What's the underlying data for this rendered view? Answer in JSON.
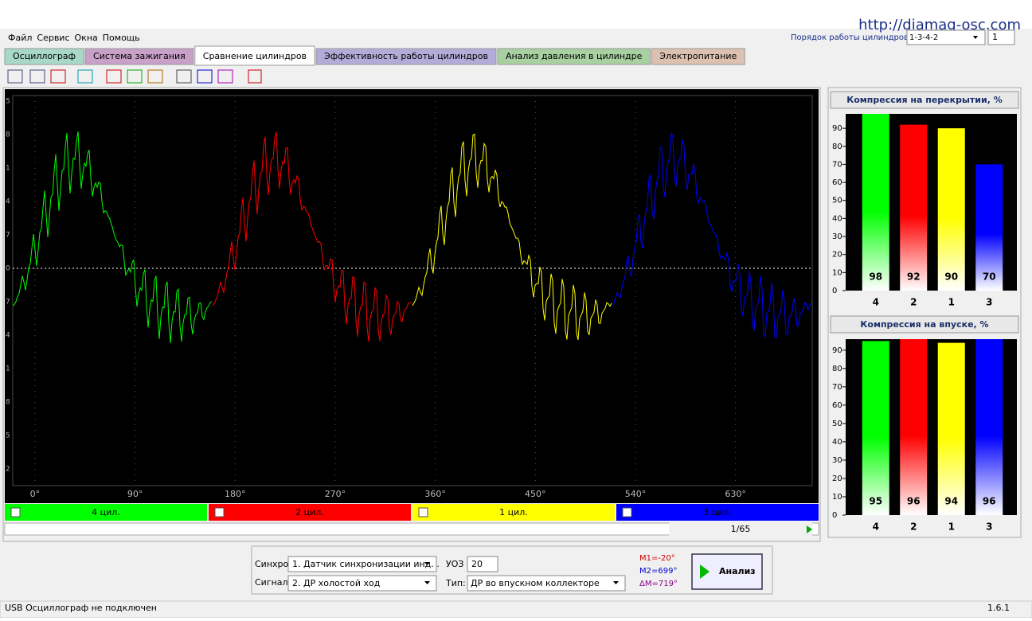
{
  "url": "http://diamag-osc.com",
  "menu": [
    "Файл",
    "Сервис",
    "Окна",
    "Помощь"
  ],
  "order_label": "Порядок работы цилиндров",
  "order_value": "1-3-4-2",
  "order_spin": "1",
  "tabs": [
    "Осциллограф",
    "Система зажигания",
    "Сравнение цилиндров",
    "Эффективность работы цилиндров",
    "Анализ давления в цилиндре",
    "Электропитание"
  ],
  "osc_y_labels": [
    "5",
    "8",
    "1",
    "4",
    "7",
    "0",
    "7",
    "4",
    "1",
    "8",
    "5",
    "2"
  ],
  "channels": [
    {
      "name": "4 цил.",
      "color": "#00ff00"
    },
    {
      "name": "2 цил.",
      "color": "#ff0000"
    },
    {
      "name": "1 цил.",
      "color": "#ffff00"
    },
    {
      "name": "3 цил.",
      "color": "#0000ff"
    }
  ],
  "chart_data": [
    {
      "type": "oscilloscope",
      "xlim": [
        -20,
        699
      ],
      "xticks": [
        {
          "value": 0,
          "label": "0°"
        },
        {
          "value": 90,
          "label": "90°"
        },
        {
          "value": 180,
          "label": "180°"
        },
        {
          "value": 270,
          "label": "270°"
        },
        {
          "value": 360,
          "label": "360°"
        },
        {
          "value": 450,
          "label": "450°"
        },
        {
          "value": 540,
          "label": "540°"
        },
        {
          "value": 630,
          "label": "630°"
        }
      ]
    },
    {
      "type": "bar",
      "title": "Компрессия на перекрытии, %",
      "categories": [
        "4",
        "2",
        "1",
        "3"
      ],
      "values": [
        98,
        92,
        90,
        70
      ],
      "colors": [
        "#00ff00",
        "#ff0000",
        "#ffff00",
        "#0000ff"
      ],
      "ylim": [
        0,
        98
      ],
      "yticks": [
        0,
        10,
        20,
        30,
        40,
        50,
        60,
        70,
        80,
        90
      ]
    },
    {
      "type": "bar",
      "title": "Компрессия на впуске, %",
      "categories": [
        "4",
        "2",
        "1",
        "3"
      ],
      "values": [
        95,
        96,
        94,
        96
      ],
      "colors": [
        "#00ff00",
        "#ff0000",
        "#ffff00",
        "#0000ff"
      ],
      "ylim": [
        0,
        96
      ],
      "yticks": [
        0,
        10,
        20,
        30,
        40,
        50,
        60,
        70,
        80,
        90
      ]
    }
  ],
  "page": "1/65",
  "sync_label": "Синхро:",
  "sync_value": "1.  Датчик синхронизации инд. .",
  "signal_label": "Сигнал:",
  "signal_value": "2.  ДР холостой ход",
  "uoz_label": "УОЗ",
  "uoz_value": "20",
  "type_label": "Тип:",
  "type_value": "ДР во впускном коллекторе",
  "markers": [
    "M1=-20°",
    "M2=699°",
    "ΔM=719°"
  ],
  "button": "Анализ",
  "status": "USB Осциллограф не подключен",
  "version": "1.6.1"
}
